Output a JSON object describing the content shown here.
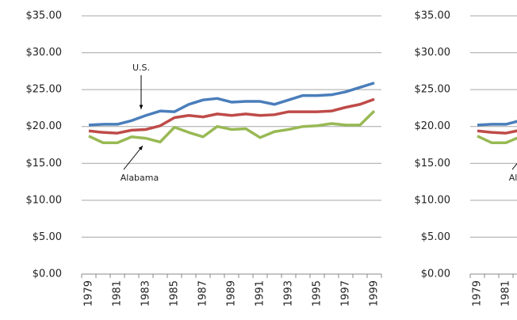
{
  "chart_data": {
    "type": "line",
    "categories": [
      "1979",
      null,
      "1981",
      null,
      "1983",
      null,
      "1985",
      null,
      "1987",
      null,
      "1989",
      null,
      "1991",
      null,
      "1993",
      null,
      "1995",
      null,
      "1997",
      null,
      "1999"
    ],
    "series": [
      {
        "name": "U.S.",
        "color": "#4a7ebb",
        "values": [
          20.2,
          20.3,
          20.3,
          20.8,
          21.5,
          22.1,
          22.0,
          23.0,
          23.6,
          23.8,
          23.3,
          23.4,
          23.4,
          23.0,
          23.6,
          24.2,
          24.2,
          24.3,
          24.7,
          25.3,
          25.9
        ]
      },
      {
        "color": "#be4b48",
        "values": [
          19.4,
          19.2,
          19.1,
          19.5,
          19.6,
          20.1,
          21.2,
          21.5,
          21.3,
          21.7,
          21.5,
          21.7,
          21.5,
          21.6,
          22.0,
          22.0,
          22.0,
          22.1,
          22.6,
          23.0,
          23.7
        ]
      },
      {
        "name": "Alabama",
        "color": "#98b954",
        "values": [
          18.7,
          17.8,
          17.8,
          18.6,
          18.4,
          17.9,
          19.9,
          19.2,
          18.6,
          20.0,
          19.6,
          19.7,
          18.5,
          19.3,
          19.6,
          20.0,
          20.1,
          20.4,
          20.2,
          20.2,
          22.1
        ]
      }
    ],
    "ylim": [
      0,
      35
    ],
    "yticks": [
      {
        "value": 0,
        "label": "$0.00"
      },
      {
        "value": 5,
        "label": "$5.00"
      },
      {
        "value": 10,
        "label": "$10.00"
      },
      {
        "value": 15,
        "label": "$15.00"
      },
      {
        "value": 20,
        "label": "$20.00"
      },
      {
        "value": 25,
        "label": "$25.00"
      },
      {
        "value": 30,
        "label": "$30.00"
      },
      {
        "value": 35,
        "label": "$35.00"
      }
    ],
    "grid": true
  }
}
